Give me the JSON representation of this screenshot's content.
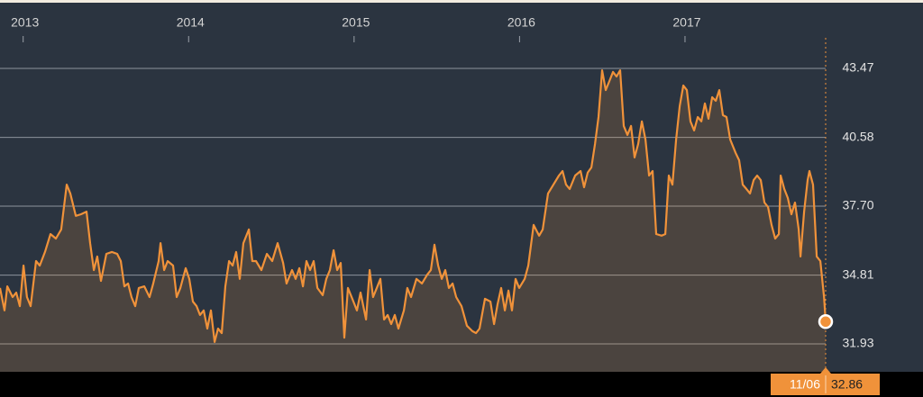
{
  "chart_data": {
    "type": "line",
    "color": "#f0923a",
    "area": true,
    "grid": true,
    "xlim": [
      2012.86,
      2017.85
    ],
    "xticks": [
      2013,
      2014,
      2015,
      2016,
      2017
    ],
    "ylim": [
      30.76,
      44.75
    ],
    "yticks": [
      31.93,
      34.81,
      {
        "value": 37.7,
        "label": "37.70"
      },
      40.58,
      43.47
    ],
    "tooltip_date": "11/06",
    "x": [
      2012.86,
      2012.887,
      2012.904,
      2012.936,
      2012.958,
      2012.98,
      2013.002,
      2013.023,
      2013.045,
      2013.078,
      2013.1,
      2013.132,
      2013.165,
      2013.198,
      2013.23,
      2013.263,
      2013.285,
      2013.318,
      2013.35,
      2013.383,
      2013.405,
      2013.427,
      2013.448,
      2013.47,
      2013.503,
      2013.536,
      2013.568,
      2013.59,
      2013.612,
      2013.634,
      2013.655,
      2013.677,
      2013.699,
      2013.732,
      2013.764,
      2013.786,
      2013.819,
      2013.83,
      2013.852,
      2013.873,
      2013.906,
      2013.928,
      2013.95,
      2013.982,
      2014.004,
      2014.026,
      2014.048,
      2014.069,
      2014.091,
      2014.113,
      2014.135,
      2014.157,
      2014.178,
      2014.2,
      2014.222,
      2014.244,
      2014.266,
      2014.287,
      2014.309,
      2014.331,
      2014.364,
      2014.385,
      2014.407,
      2014.44,
      2014.473,
      2014.505,
      2014.538,
      2014.571,
      2014.592,
      2014.625,
      2014.647,
      2014.669,
      2014.691,
      2014.712,
      2014.734,
      2014.756,
      2014.778,
      2014.81,
      2014.832,
      2014.854,
      2014.876,
      2014.898,
      2014.919,
      2014.941,
      2014.963,
      2014.985,
      2015.017,
      2015.039,
      2015.072,
      2015.094,
      2015.115,
      2015.137,
      2015.159,
      2015.181,
      2015.203,
      2015.224,
      2015.246,
      2015.268,
      2015.301,
      2015.322,
      2015.344,
      2015.377,
      2015.41,
      2015.442,
      2015.464,
      2015.486,
      2015.508,
      2015.53,
      2015.551,
      2015.573,
      2015.595,
      2015.617,
      2015.649,
      2015.682,
      2015.715,
      2015.737,
      2015.758,
      2015.791,
      2015.824,
      2015.846,
      2015.867,
      2015.889,
      2015.911,
      2015.933,
      2015.954,
      2015.976,
      2015.998,
      2016.031,
      2016.053,
      2016.085,
      2016.118,
      2016.14,
      2016.172,
      2016.205,
      2016.238,
      2016.26,
      2016.281,
      2016.303,
      2016.336,
      2016.369,
      2016.39,
      2016.412,
      2016.434,
      2016.456,
      2016.477,
      2016.499,
      2016.521,
      2016.543,
      2016.565,
      2016.586,
      2016.608,
      2016.63,
      2016.652,
      2016.674,
      2016.695,
      2016.717,
      2016.739,
      2016.761,
      2016.783,
      2016.804,
      2016.826,
      2016.859,
      2016.881,
      2016.902,
      2016.924,
      2016.946,
      2016.968,
      2016.99,
      2017.011,
      2017.033,
      2017.055,
      2017.077,
      2017.099,
      2017.12,
      2017.142,
      2017.164,
      2017.186,
      2017.207,
      2017.229,
      2017.251,
      2017.273,
      2017.306,
      2017.327,
      2017.349,
      2017.371,
      2017.393,
      2017.415,
      2017.436,
      2017.458,
      2017.48,
      2017.502,
      2017.523,
      2017.545,
      2017.567,
      2017.578,
      2017.6,
      2017.621,
      2017.643,
      2017.665,
      2017.687,
      2017.698,
      2017.72,
      2017.741,
      2017.752,
      2017.774,
      2017.796,
      2017.818,
      2017.84,
      2017.85
    ],
    "values": [
      34.27,
      33.33,
      34.34,
      33.89,
      34.08,
      33.51,
      35.21,
      33.89,
      33.51,
      35.4,
      35.21,
      35.78,
      36.53,
      36.34,
      36.72,
      38.6,
      38.23,
      37.29,
      37.36,
      37.47,
      36.15,
      35.02,
      35.59,
      34.57,
      35.7,
      35.78,
      35.7,
      35.4,
      34.34,
      34.46,
      33.89,
      33.51,
      34.27,
      34.34,
      33.89,
      34.46,
      35.4,
      36.15,
      35.02,
      35.4,
      35.21,
      33.89,
      34.27,
      35.1,
      34.65,
      33.7,
      33.51,
      33.14,
      33.33,
      32.57,
      33.33,
      32.01,
      32.57,
      32.38,
      34.34,
      35.4,
      35.21,
      35.78,
      34.65,
      36.15,
      36.72,
      35.4,
      35.4,
      35.02,
      35.7,
      35.4,
      36.15,
      35.32,
      34.46,
      35.02,
      34.65,
      35.1,
      34.34,
      35.4,
      35.02,
      35.4,
      34.27,
      33.97,
      34.65,
      35.02,
      35.85,
      35.02,
      35.32,
      32.19,
      34.27,
      33.89,
      33.33,
      34.08,
      32.95,
      35.02,
      33.89,
      34.27,
      34.65,
      32.95,
      33.14,
      32.76,
      33.14,
      32.57,
      33.33,
      34.27,
      33.89,
      34.65,
      34.46,
      34.83,
      35.02,
      36.08,
      35.21,
      34.65,
      35.02,
      34.27,
      34.46,
      33.89,
      33.51,
      32.69,
      32.46,
      32.38,
      32.57,
      33.82,
      33.7,
      32.76,
      33.59,
      34.27,
      33.33,
      34.16,
      33.33,
      34.65,
      34.27,
      34.65,
      35.21,
      36.91,
      36.46,
      36.72,
      38.23,
      38.6,
      38.98,
      39.17,
      38.6,
      38.42,
      38.98,
      39.17,
      38.49,
      39.1,
      39.32,
      40.3,
      41.43,
      43.39,
      42.56,
      42.94,
      43.32,
      43.13,
      43.39,
      41.06,
      40.68,
      41.06,
      39.74,
      40.3,
      41.25,
      40.49,
      38.98,
      39.17,
      36.53,
      36.46,
      36.53,
      38.98,
      38.6,
      40.49,
      41.89,
      42.75,
      42.56,
      41.25,
      40.87,
      41.43,
      41.25,
      42.0,
      41.36,
      42.26,
      42.11,
      42.56,
      41.51,
      41.43,
      40.49,
      39.93,
      39.62,
      38.6,
      38.42,
      38.23,
      38.79,
      38.98,
      38.79,
      37.85,
      37.66,
      36.91,
      36.34,
      36.53,
      38.98,
      38.42,
      38.04,
      37.36,
      37.85,
      36.72,
      35.59,
      37.47,
      38.79,
      39.17,
      38.6,
      35.59,
      35.4,
      33.89,
      32.86
    ]
  }
}
